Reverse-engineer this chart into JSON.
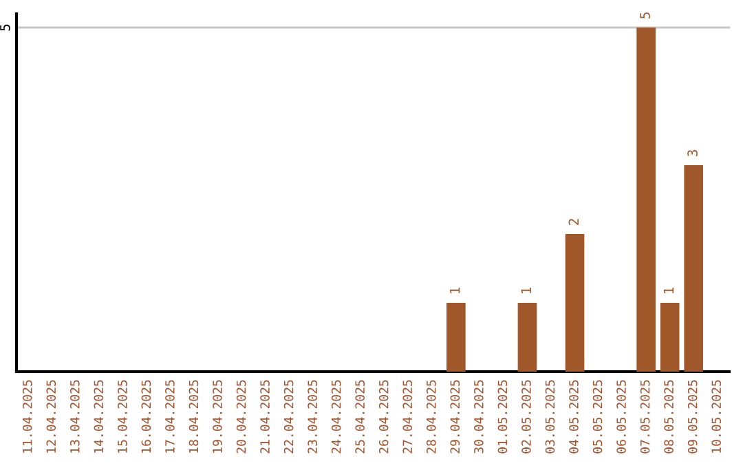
{
  "chart_data": {
    "type": "bar",
    "categories": [
      "11.04.2025",
      "12.04.2025",
      "13.04.2025",
      "14.04.2025",
      "15.04.2025",
      "16.04.2025",
      "17.04.2025",
      "18.04.2025",
      "19.04.2025",
      "20.04.2025",
      "21.04.2025",
      "22.04.2025",
      "23.04.2025",
      "24.04.2025",
      "25.04.2025",
      "26.04.2025",
      "27.04.2025",
      "28.04.2025",
      "29.04.2025",
      "30.04.2025",
      "01.05.2025",
      "02.05.2025",
      "03.05.2025",
      "04.05.2025",
      "05.05.2025",
      "06.05.2025",
      "07.05.2025",
      "08.05.2025",
      "09.05.2025",
      "10.05.2025"
    ],
    "series": [
      {
        "color": "#a0572a",
        "values": [
          null,
          null,
          null,
          null,
          null,
          null,
          null,
          null,
          null,
          null,
          null,
          null,
          null,
          null,
          null,
          null,
          null,
          null,
          1,
          null,
          null,
          1,
          null,
          2,
          null,
          null,
          5,
          1,
          3,
          null
        ]
      }
    ],
    "data_labels": true,
    "ylim": [
      0,
      5.2
    ],
    "yticks": [
      5
    ],
    "grid": "y"
  }
}
